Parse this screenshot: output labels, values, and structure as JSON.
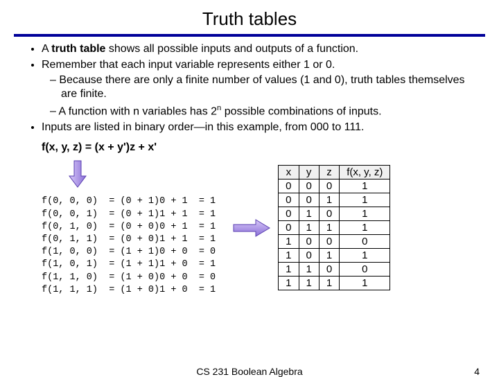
{
  "title": "Truth tables",
  "bullets": {
    "b1_pre": "A ",
    "b1_bold": "truth table",
    "b1_post": " shows all possible inputs and outputs of a function.",
    "b2": "Remember that each input variable represents either 1 or 0.",
    "b2a": "Because there are only a finite number of values (1 and 0), truth tables themselves are finite.",
    "b2b_pre": "A function with n variables has 2",
    "b2b_sup": "n",
    "b2b_post": " possible combinations of inputs.",
    "b3": "Inputs are listed in binary order—in this example, from 000 to 111."
  },
  "formula": "f(x, y, z) = (x + y')z + x'",
  "evals": "f(0, 0, 0)  = (0 + 1)0 + 1  = 1\nf(0, 0, 1)  = (0 + 1)1 + 1  = 1\nf(0, 1, 0)  = (0 + 0)0 + 1  = 1\nf(0, 1, 1)  = (0 + 0)1 + 1  = 1\nf(1, 0, 0)  = (1 + 1)0 + 0  = 0\nf(1, 0, 1)  = (1 + 1)1 + 0  = 1\nf(1, 1, 0)  = (1 + 0)0 + 0  = 0\nf(1, 1, 1)  = (1 + 0)1 + 0  = 1",
  "truth_table": {
    "headers": [
      "x",
      "y",
      "z",
      "f(x, y, z)"
    ],
    "rows": [
      [
        "0",
        "0",
        "0",
        "1"
      ],
      [
        "0",
        "0",
        "1",
        "1"
      ],
      [
        "0",
        "1",
        "0",
        "1"
      ],
      [
        "0",
        "1",
        "1",
        "1"
      ],
      [
        "1",
        "0",
        "0",
        "0"
      ],
      [
        "1",
        "0",
        "1",
        "1"
      ],
      [
        "1",
        "1",
        "0",
        "0"
      ],
      [
        "1",
        "1",
        "1",
        "1"
      ]
    ]
  },
  "arrow": {
    "grad_light": "#d8c8f8",
    "grad_dark": "#8a6fd8",
    "stroke": "#5a3fb0"
  },
  "footer": {
    "center": "CS 231 Boolean Algebra",
    "page": "4"
  },
  "colors": {
    "rule": "#000099",
    "background": "#ffffff",
    "text": "#000000",
    "table_border": "#000000",
    "table_header_bg": "#f0f0f0"
  }
}
